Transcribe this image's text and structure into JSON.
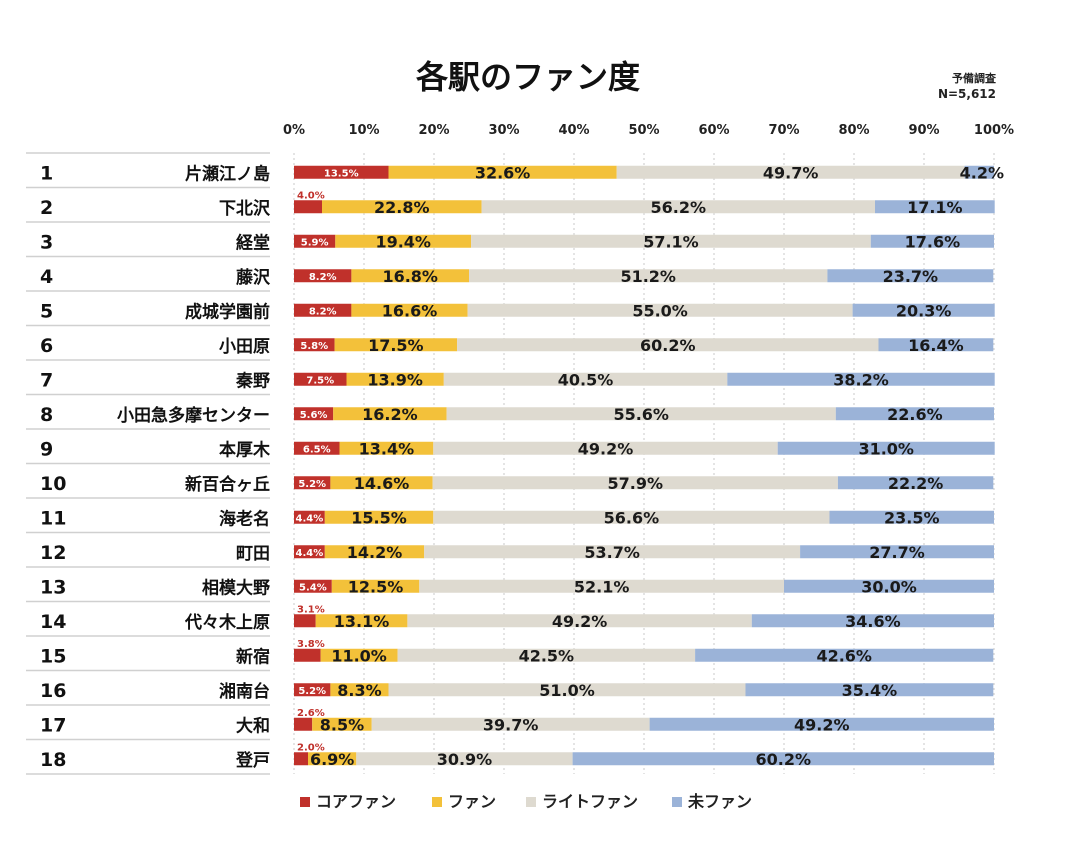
{
  "chart_data": {
    "type": "bar",
    "orientation": "horizontal",
    "stacked": true,
    "title": "各駅のファン度",
    "note": {
      "line1": "予備調査",
      "line2": "N=5,612"
    },
    "xlim": [
      0,
      100
    ],
    "x_ticks": [
      "0%",
      "10%",
      "20%",
      "30%",
      "40%",
      "50%",
      "60%",
      "70%",
      "80%",
      "90%",
      "100%"
    ],
    "categories": [
      {
        "rank": "1",
        "name": "片瀬江ノ島"
      },
      {
        "rank": "2",
        "name": "下北沢"
      },
      {
        "rank": "3",
        "name": "経堂"
      },
      {
        "rank": "4",
        "name": "藤沢"
      },
      {
        "rank": "5",
        "name": "成城学園前"
      },
      {
        "rank": "6",
        "name": "小田原"
      },
      {
        "rank": "7",
        "name": "秦野"
      },
      {
        "rank": "8",
        "name": "小田急多摩センター"
      },
      {
        "rank": "9",
        "name": "本厚木"
      },
      {
        "rank": "10",
        "name": "新百合ヶ丘"
      },
      {
        "rank": "11",
        "name": "海老名"
      },
      {
        "rank": "12",
        "name": "町田"
      },
      {
        "rank": "13",
        "name": "相模大野"
      },
      {
        "rank": "14",
        "name": "代々木上原"
      },
      {
        "rank": "15",
        "name": "新宿"
      },
      {
        "rank": "16",
        "name": "湘南台"
      },
      {
        "rank": "17",
        "name": "大和"
      },
      {
        "rank": "18",
        "name": "登戸"
      }
    ],
    "series": [
      {
        "name": "コアファン",
        "color": "#c0312b",
        "label_color": "#ffffff",
        "values": [
          13.5,
          4.0,
          5.9,
          8.2,
          8.2,
          5.8,
          7.5,
          5.6,
          6.5,
          5.2,
          4.4,
          4.4,
          5.4,
          3.1,
          3.8,
          5.2,
          2.6,
          2.0
        ],
        "labels": [
          "13.5%",
          "4.0%",
          "5.9%",
          "8.2%",
          "8.2%",
          "5.8%",
          "7.5%",
          "5.6%",
          "6.5%",
          "5.2%",
          "4.4%",
          "4.4%",
          "5.4%",
          "3.1%",
          "3.8%",
          "5.2%",
          "2.6%",
          "2.0%"
        ]
      },
      {
        "name": "ファン",
        "color": "#f3c13a",
        "label_color": "#1a1a1a",
        "values": [
          32.6,
          22.8,
          19.4,
          16.8,
          16.6,
          17.5,
          13.9,
          16.2,
          13.4,
          14.6,
          15.5,
          14.2,
          12.5,
          13.1,
          11.0,
          8.3,
          8.5,
          6.9
        ],
        "labels": [
          "32.6%",
          "22.8%",
          "19.4%",
          "16.8%",
          "16.6%",
          "17.5%",
          "13.9%",
          "16.2%",
          "13.4%",
          "14.6%",
          "15.5%",
          "14.2%",
          "12.5%",
          "13.1%",
          "11.0%",
          "8.3%",
          "8.5%",
          "6.9%"
        ]
      },
      {
        "name": "ライトファン",
        "color": "#dedad0",
        "label_color": "#1a1a1a",
        "values": [
          49.7,
          56.2,
          57.1,
          51.2,
          55.0,
          60.2,
          40.5,
          55.6,
          49.2,
          57.9,
          56.6,
          53.7,
          52.1,
          49.2,
          42.5,
          51.0,
          39.7,
          30.9
        ],
        "labels": [
          "49.7%",
          "56.2%",
          "57.1%",
          "51.2%",
          "55.0%",
          "60.2%",
          "40.5%",
          "55.6%",
          "49.2%",
          "57.9%",
          "56.6%",
          "53.7%",
          "52.1%",
          "49.2%",
          "42.5%",
          "51.0%",
          "39.7%",
          "30.9%"
        ]
      },
      {
        "name": "未ファン",
        "color": "#9bb3d8",
        "label_color": "#1a1a1a",
        "values": [
          4.2,
          17.1,
          17.6,
          23.7,
          20.3,
          16.4,
          38.2,
          22.6,
          31.0,
          22.2,
          23.5,
          27.7,
          30.0,
          34.6,
          42.6,
          35.4,
          49.2,
          60.2
        ],
        "labels": [
          "4.2%",
          "17.1%",
          "17.6%",
          "23.7%",
          "20.3%",
          "16.4%",
          "38.2%",
          "22.6%",
          "31.0%",
          "22.2%",
          "23.5%",
          "27.7%",
          "30.0%",
          "34.6%",
          "42.6%",
          "35.4%",
          "49.2%",
          "60.2%"
        ]
      }
    ],
    "legend_position": "bottom"
  }
}
